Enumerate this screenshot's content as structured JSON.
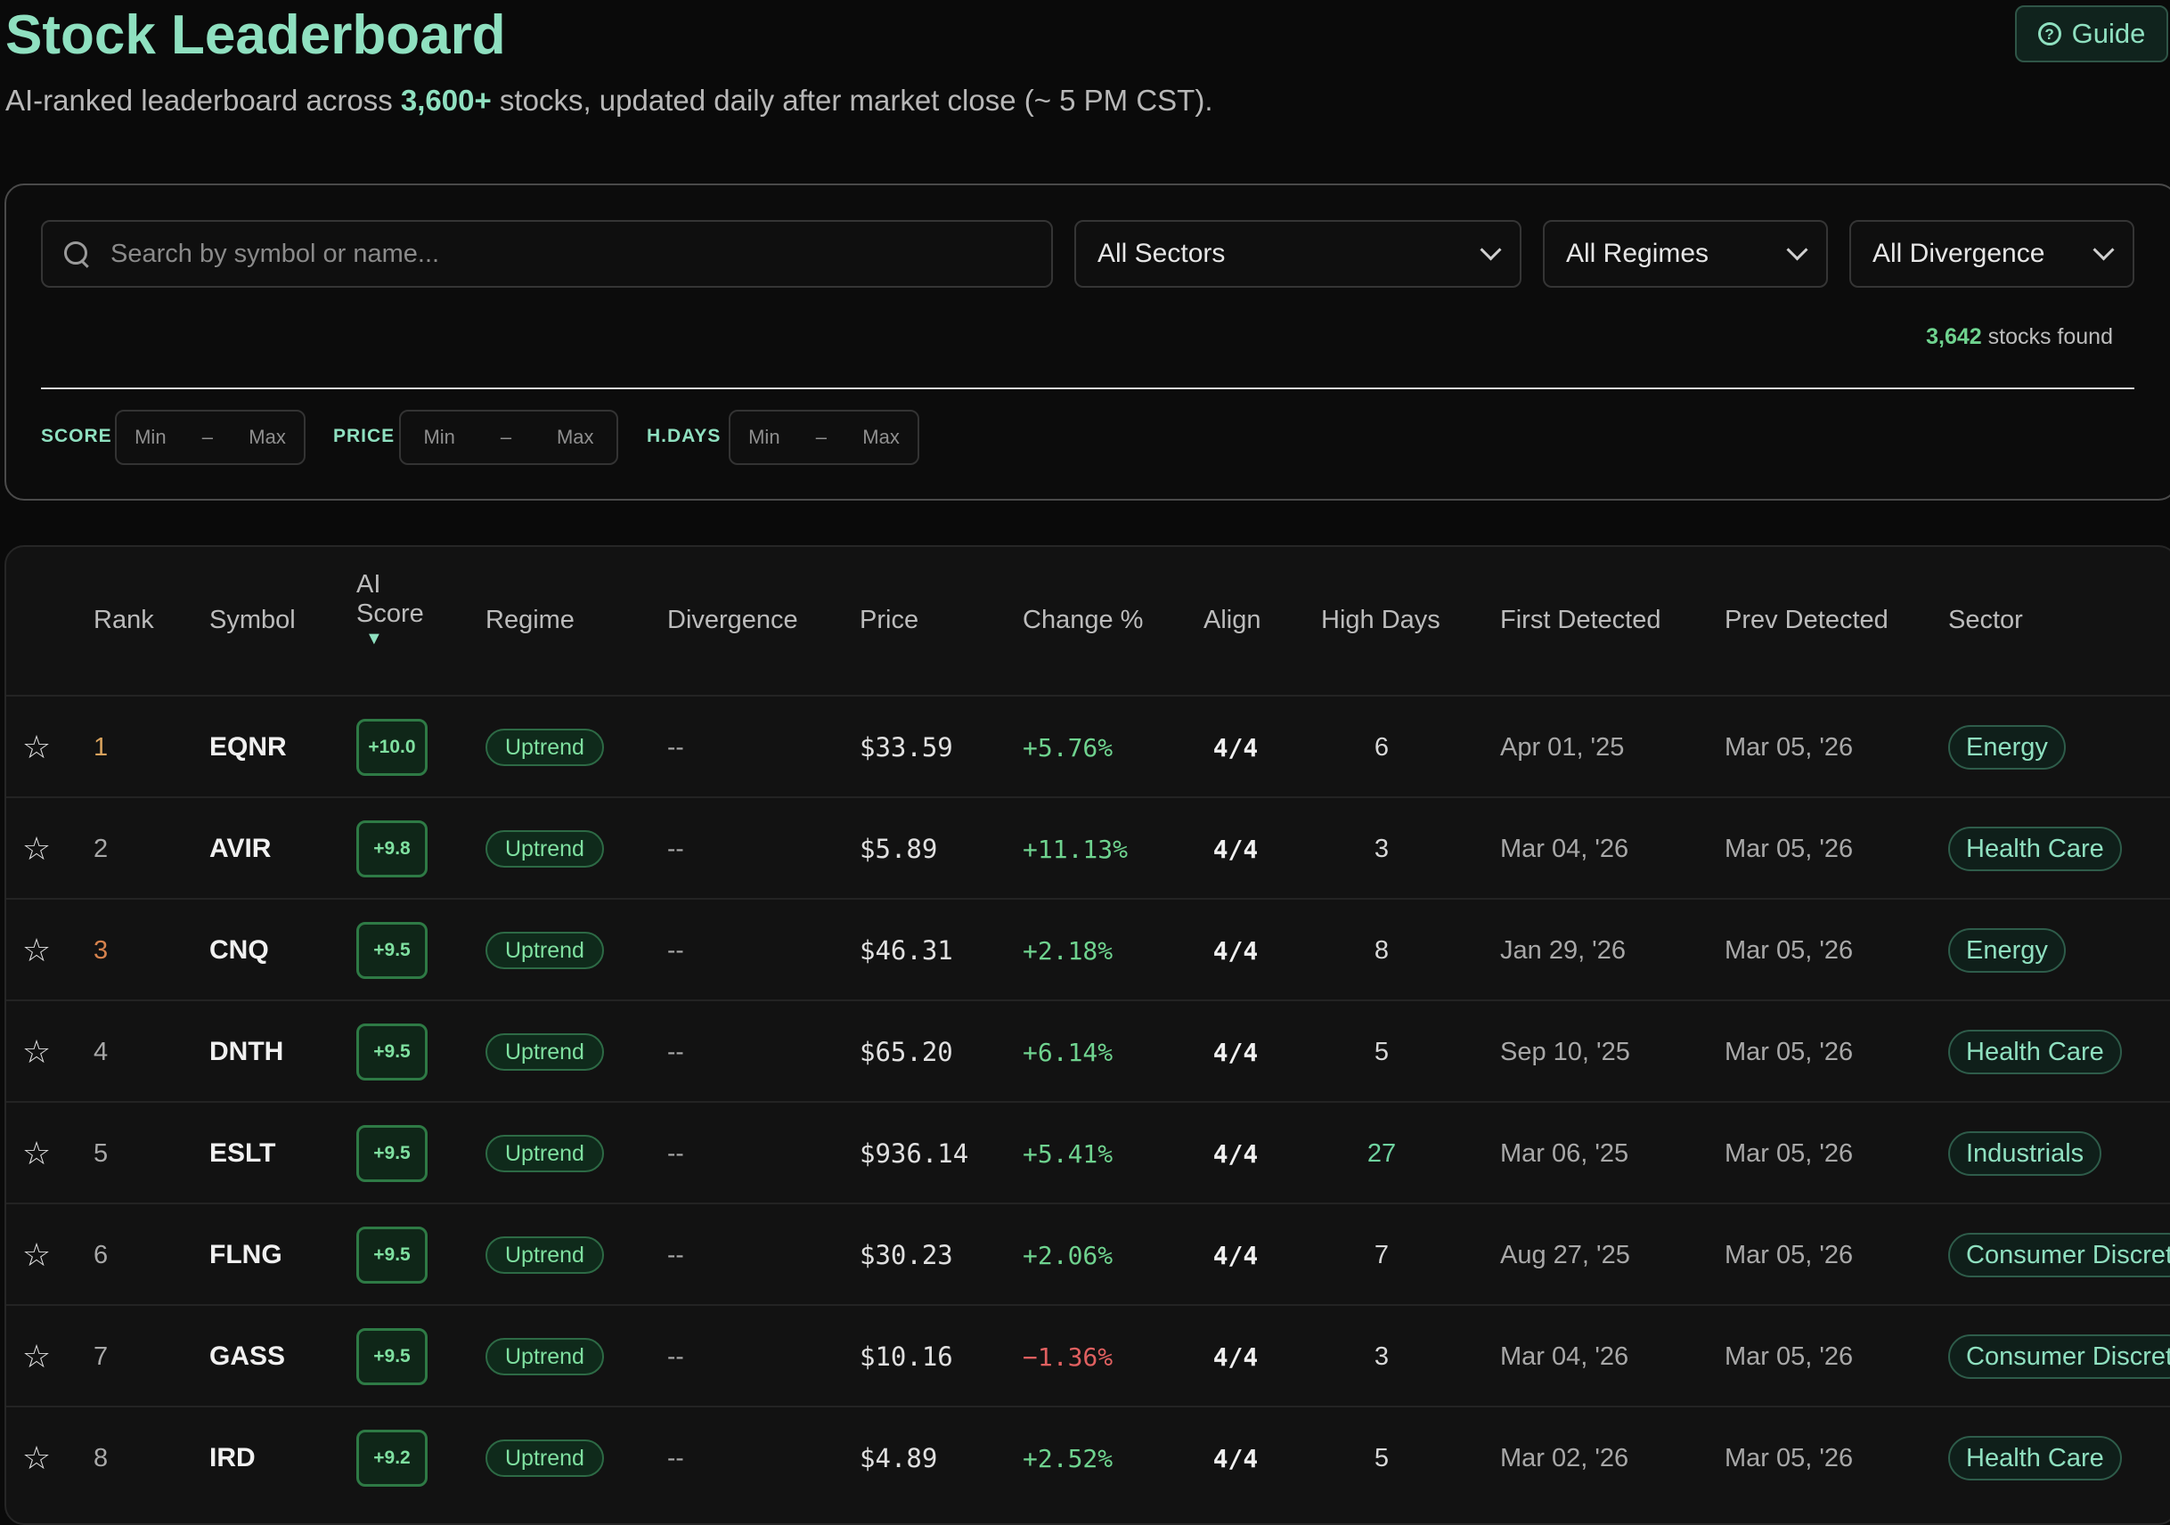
{
  "header": {
    "title": "Stock Leaderboard",
    "subtitle_pre": "AI-ranked leaderboard across ",
    "subtitle_count": "3,600+",
    "subtitle_post": " stocks, updated daily after market close (~ 5 PM CST).",
    "guide_label": "Guide"
  },
  "filters": {
    "search_placeholder": "Search by symbol or name...",
    "sector_select": "All Sectors",
    "regime_select": "All Regimes",
    "divergence_select": "All Divergence",
    "found_count": "3,642",
    "found_label": " stocks found",
    "ranges": [
      {
        "label": "SCORE",
        "min": "Min",
        "sep": "–",
        "max": "Max"
      },
      {
        "label": "PRICE",
        "min": "Min",
        "sep": "–",
        "max": "Max"
      },
      {
        "label": "H.DAYS",
        "min": "Min",
        "sep": "–",
        "max": "Max"
      }
    ]
  },
  "table": {
    "headers": {
      "rank": "Rank",
      "symbol": "Symbol",
      "ai": "AI",
      "score": "Score",
      "sort_arrow": "▼",
      "regime": "Regime",
      "divergence": "Divergence",
      "price": "Price",
      "change": "Change %",
      "align": "Align",
      "high_days": "High Days",
      "first_detected": "First Detected",
      "prev_detected": "Prev Detected",
      "sector": "Sector"
    },
    "rows": [
      {
        "star": "☆",
        "rank": "1",
        "symbol": "EQNR",
        "score": "+10.0",
        "regime": "Uptrend",
        "divergence": "--",
        "price": "$33.59",
        "change": "+5.76%",
        "align": "4/4",
        "high_days": "6",
        "first": "Apr 01, '25",
        "prev": "Mar 05, '26",
        "sector": "Energy"
      },
      {
        "star": "☆",
        "rank": "2",
        "symbol": "AVIR",
        "score": "+9.8",
        "regime": "Uptrend",
        "divergence": "--",
        "price": "$5.89",
        "change": "+11.13%",
        "align": "4/4",
        "high_days": "3",
        "first": "Mar 04, '26",
        "prev": "Mar 05, '26",
        "sector": "Health Care"
      },
      {
        "star": "☆",
        "rank": "3",
        "symbol": "CNQ",
        "score": "+9.5",
        "regime": "Uptrend",
        "divergence": "--",
        "price": "$46.31",
        "change": "+2.18%",
        "align": "4/4",
        "high_days": "8",
        "first": "Jan 29, '26",
        "prev": "Mar 05, '26",
        "sector": "Energy"
      },
      {
        "star": "☆",
        "rank": "4",
        "symbol": "DNTH",
        "score": "+9.5",
        "regime": "Uptrend",
        "divergence": "--",
        "price": "$65.20",
        "change": "+6.14%",
        "align": "4/4",
        "high_days": "5",
        "first": "Sep 10, '25",
        "prev": "Mar 05, '26",
        "sector": "Health Care"
      },
      {
        "star": "☆",
        "rank": "5",
        "symbol": "ESLT",
        "score": "+9.5",
        "regime": "Uptrend",
        "divergence": "--",
        "price": "$936.14",
        "change": "+5.41%",
        "align": "4/4",
        "high_days": "27",
        "first": "Mar 06, '25",
        "prev": "Mar 05, '26",
        "sector": "Industrials"
      },
      {
        "star": "☆",
        "rank": "6",
        "symbol": "FLNG",
        "score": "+9.5",
        "regime": "Uptrend",
        "divergence": "--",
        "price": "$30.23",
        "change": "+2.06%",
        "align": "4/4",
        "high_days": "7",
        "first": "Aug 27, '25",
        "prev": "Mar 05, '26",
        "sector": "Consumer Discret"
      },
      {
        "star": "☆",
        "rank": "7",
        "symbol": "GASS",
        "score": "+9.5",
        "regime": "Uptrend",
        "divergence": "--",
        "price": "$10.16",
        "change": "−1.36%",
        "align": "4/4",
        "high_days": "3",
        "first": "Mar 04, '26",
        "prev": "Mar 05, '26",
        "sector": "Consumer Discret"
      },
      {
        "star": "☆",
        "rank": "8",
        "symbol": "IRD",
        "score": "+9.2",
        "regime": "Uptrend",
        "divergence": "--",
        "price": "$4.89",
        "change": "+2.52%",
        "align": "4/4",
        "high_days": "5",
        "first": "Mar 02, '26",
        "prev": "Mar 05, '26",
        "sector": "Health Care"
      }
    ]
  },
  "colors": {
    "accent": "#8fe0c0",
    "positive": "#6fd38f",
    "negative": "#e06060",
    "background": "#0a0a0a"
  }
}
